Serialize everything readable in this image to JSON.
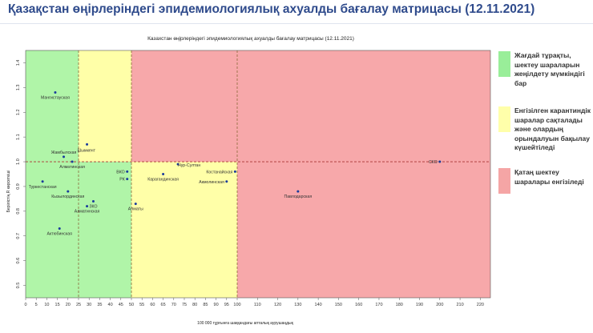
{
  "slide_title": "Қазақстан өңірлеріндегі эпидемиологиялық ахуалды бағалау матрицасы  (12.11.2021)",
  "legend": [
    {
      "label": "Жағдай тұрақты, шектеу шараларын жеңілдету мүмкіндігі бар",
      "color": "#99ee99"
    },
    {
      "label": "Енгізілген карантиндік шаралар сақталады және олардың орындалуын бақылау күшейтіледі",
      "color": "#ffffaa"
    },
    {
      "label": "Қатаң шектеу шаралары енгізіледі",
      "color": "#f5a5a5"
    }
  ],
  "chart_data": {
    "type": "scatter",
    "title": "Казахстан өңірлеріндегі эпидемиологиялық ахуалды бағалау матрицасы (12.11.2021)",
    "xlabel": "100 000 тұрғынға шаққандағы апталық аурушаңдық",
    "ylabel": "Берілістің R көрсеткіші",
    "xlim": [
      0,
      225
    ],
    "ylim": [
      0.45,
      1.45
    ],
    "x_ticks": [
      0,
      5,
      10,
      15,
      20,
      25,
      30,
      35,
      40,
      45,
      50,
      55,
      60,
      65,
      70,
      75,
      80,
      85,
      90,
      95,
      100,
      110,
      120,
      130,
      140,
      150,
      160,
      170,
      180,
      190,
      200,
      210,
      220
    ],
    "y_ticks": [
      0.5,
      0.6,
      0.7,
      0.8,
      0.9,
      1.0,
      1.1,
      1.2,
      1.3,
      1.4
    ],
    "zones": [
      {
        "x_from": 0,
        "x_to": 50,
        "color": "#b0f5a8"
      },
      {
        "x_from": 50,
        "x_to": 100,
        "color": "#ffffa8"
      },
      {
        "x_from": 100,
        "x_to": 225,
        "color": "#f7a8aa"
      },
      {
        "x_from": 25,
        "x_to": 50,
        "y_from": 1.0,
        "y_to": 1.45,
        "color": "#ffffa8"
      },
      {
        "x_from": 50,
        "x_to": 100,
        "y_from": 1.0,
        "y_to": 1.45,
        "color": "#f7a8aa"
      }
    ],
    "threshold_lines": {
      "x": [
        25,
        50,
        100
      ],
      "y": [
        1.0
      ]
    },
    "points": [
      {
        "label": "Мангистауская",
        "x": 14,
        "y": 1.28
      },
      {
        "label": "Шымкент",
        "x": 29,
        "y": 1.07
      },
      {
        "label": "Жамбылская",
        "x": 18,
        "y": 1.02
      },
      {
        "label": "Алматинская",
        "x": 22,
        "y": 1.0
      },
      {
        "label": "Туркестанская",
        "x": 8,
        "y": 0.92
      },
      {
        "label": "Кызылординская",
        "x": 20,
        "y": 0.88
      },
      {
        "label": "ЗКО",
        "x": 32,
        "y": 0.84
      },
      {
        "label": "Алматинская",
        "x": 29,
        "y": 0.82
      },
      {
        "label": "Актюбинская",
        "x": 16,
        "y": 0.73
      },
      {
        "label": "ВКО",
        "x": 48,
        "y": 0.96
      },
      {
        "label": "РК",
        "x": 48,
        "y": 0.93
      },
      {
        "label": "Алматы",
        "x": 52,
        "y": 0.83
      },
      {
        "label": "Нур-Султан",
        "x": 72,
        "y": 0.99
      },
      {
        "label": "Карагандинская",
        "x": 65,
        "y": 0.95
      },
      {
        "label": "Костанайская",
        "x": 99,
        "y": 0.96
      },
      {
        "label": "Акмолинская",
        "x": 95,
        "y": 0.92
      },
      {
        "label": "Павлодарская",
        "x": 130,
        "y": 0.88
      },
      {
        "label": "СКО",
        "x": 200,
        "y": 1.0
      }
    ]
  }
}
